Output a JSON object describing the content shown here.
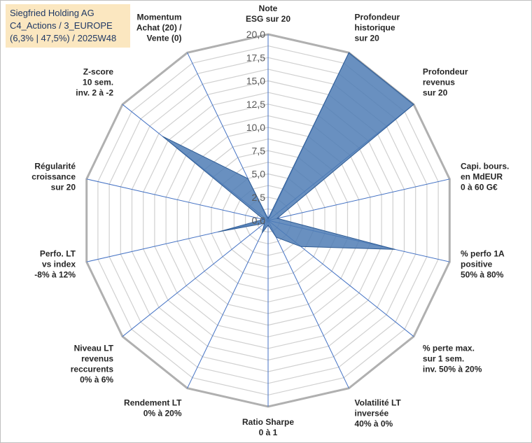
{
  "title_box": {
    "line1": "Siegfried Holding AG",
    "line2": "C4_Actions / 3_EUROPE",
    "line3": "(6,3% | 47,5%) / 2025W48"
  },
  "colors": {
    "fill": "#4f7db5",
    "stroke": "#2e5b94",
    "grid": "#d0d0d0",
    "outer_grid": "#b0b0b0",
    "spoke": "#4472c4"
  },
  "chart_data": {
    "type": "radar",
    "rmin": 0,
    "rmax": 20,
    "tick_step": 2.5,
    "tick_labels": [
      "0,0",
      "2,5",
      "5,0",
      "7,5",
      "10,0",
      "12,5",
      "15,0",
      "17,5",
      "20,0"
    ],
    "axes": [
      {
        "lines": [
          "Note",
          "ESG sur 20"
        ],
        "value": 0.2
      },
      {
        "lines": [
          "Profondeur",
          "historique",
          "sur 20"
        ],
        "value": 20
      },
      {
        "lines": [
          "Profondeur",
          "revenus",
          "sur 20"
        ],
        "value": 20
      },
      {
        "lines": [
          "Capi. bours.",
          "en MdEUR",
          "0 à 60 G€"
        ],
        "value": 1.0
      },
      {
        "lines": [
          "% perfo 1A",
          "positive",
          "50% à 80%"
        ],
        "value": 14.0
      },
      {
        "lines": [
          "% perte max.",
          "sur 1 sem.",
          "inv. 50% à 20%"
        ],
        "value": 4.5
      },
      {
        "lines": [
          "Volatilité LT",
          "inversée",
          "40% à 0%"
        ],
        "value": 2.0
      },
      {
        "lines": [
          "Ratio Sharpe",
          "0 à 1"
        ],
        "value": 0.5
      },
      {
        "lines": [
          "Rendement LT",
          "0% à 20%"
        ],
        "value": 1.5
      },
      {
        "lines": [
          "Niveau LT",
          "revenus",
          "reccurents",
          "0% à 6%"
        ],
        "value": 0.5
      },
      {
        "lines": [
          "Perfo. LT",
          "vs index",
          "-8% à 12%"
        ],
        "value": 5.5
      },
      {
        "lines": [
          "Régularité",
          "croissance",
          "sur 20"
        ],
        "value": 0.5
      },
      {
        "lines": [
          "Z-score",
          "10 sem.",
          "inv. 2 à -2"
        ],
        "value": 14.5
      },
      {
        "lines": [
          "Momentum",
          "Achat (20) /",
          "Vente (0)"
        ],
        "value": 5.0
      }
    ]
  }
}
